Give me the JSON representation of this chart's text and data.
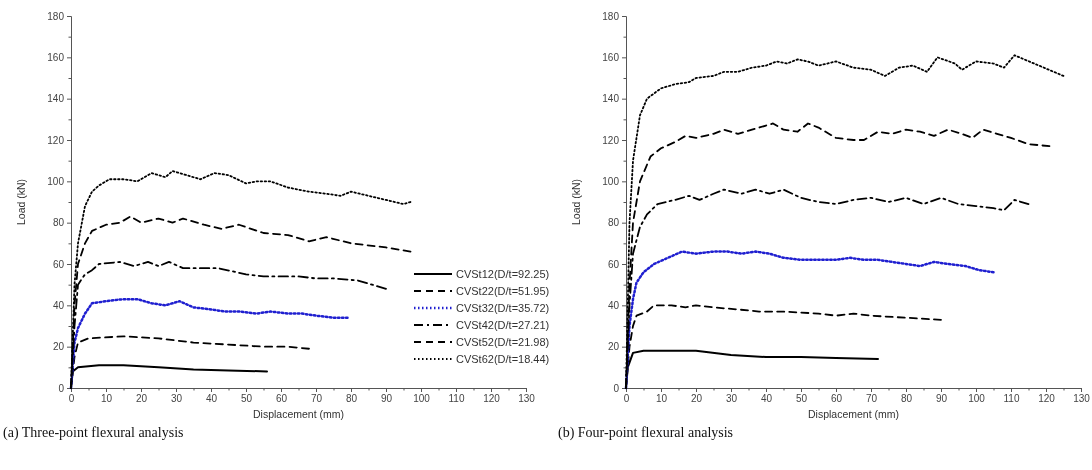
{
  "chart_data": [
    {
      "type": "line",
      "title": "(a) Three-point flexural analysis",
      "xlabel": "Displacement (mm)",
      "ylabel": "Load (kN)",
      "xlim": [
        0,
        130
      ],
      "ylim": [
        0,
        180
      ],
      "xticks": [
        0,
        {
          "value": 5,
          "label": null
        },
        10,
        {
          "value": 15,
          "label": null
        },
        20,
        {
          "value": 25,
          "label": null
        },
        30,
        {
          "value": 35,
          "label": null
        },
        40,
        {
          "value": 45,
          "label": null
        },
        50,
        {
          "value": 55,
          "label": null
        },
        60,
        {
          "value": 65,
          "label": null
        },
        70,
        {
          "value": 75,
          "label": null
        },
        80,
        {
          "value": 85,
          "label": null
        },
        90,
        {
          "value": 95,
          "label": null
        },
        100,
        {
          "value": 105,
          "label": null
        },
        110,
        {
          "value": 115,
          "label": null
        },
        120,
        {
          "value": 125,
          "label": null
        },
        130
      ],
      "yticks": [
        0,
        {
          "value": 10,
          "label": null
        },
        20,
        {
          "value": 30,
          "label": null
        },
        40,
        {
          "value": 50,
          "label": null
        },
        60,
        {
          "value": 70,
          "label": null
        },
        80,
        {
          "value": 90,
          "label": null
        },
        100,
        {
          "value": 110,
          "label": null
        },
        120,
        {
          "value": 130,
          "label": null
        },
        140,
        {
          "value": 150,
          "label": null
        },
        160,
        {
          "value": 170,
          "label": null
        },
        180
      ],
      "grid": false,
      "legend": "bottom right",
      "marker": "none",
      "series": [
        {
          "name": "CVSt12(D/t=92.25)",
          "color": "#000000",
          "line_style": "solid",
          "x": [
            0,
            0.5,
            2,
            8,
            15,
            25,
            35,
            45,
            56
          ],
          "values": [
            0,
            8,
            10,
            11,
            11,
            10,
            9,
            8.5,
            8
          ]
        },
        {
          "name": "CVSt22(D/t=51.95)",
          "color": "#000000",
          "line_style": "dashed",
          "x": [
            0,
            1,
            2,
            5,
            15,
            25,
            35,
            45,
            55,
            62,
            68
          ],
          "values": [
            0,
            15,
            22,
            24,
            25,
            24,
            22,
            21,
            20,
            20,
            19
          ]
        },
        {
          "name": "CVSt32(D/t=35.72)",
          "color": "#1f1fd0",
          "line_style": "dotted",
          "x": [
            0,
            1,
            2,
            4,
            6,
            10,
            15,
            19,
            23,
            27,
            31,
            35,
            40,
            44,
            48,
            53,
            57,
            62,
            66,
            70,
            75,
            79
          ],
          "values": [
            0,
            22,
            29,
            36,
            41,
            42,
            43,
            43,
            41,
            40,
            42,
            39,
            38,
            37,
            37,
            36,
            37,
            36,
            36,
            35,
            34,
            34
          ]
        },
        {
          "name": "CVSt42(D/t=27.21)",
          "color": "#000000",
          "line_style": "dashdot",
          "x": [
            0,
            1,
            2,
            4,
            6,
            8,
            14,
            18,
            22,
            25,
            28,
            32,
            38,
            42,
            50,
            55,
            60,
            65,
            70,
            75,
            82,
            86,
            90
          ],
          "values": [
            0,
            30,
            50,
            55,
            57,
            60,
            61,
            59,
            61,
            59,
            61,
            58,
            58,
            58,
            55,
            54,
            54,
            54,
            53,
            53,
            52,
            50,
            48
          ]
        },
        {
          "name": "CVSt52(D/t=21.98)",
          "color": "#000000",
          "line_style": "dashed",
          "x": [
            0,
            1,
            2,
            4,
            6,
            10,
            14,
            17,
            20,
            25,
            29,
            32,
            38,
            43,
            48,
            55,
            62,
            68,
            73,
            80,
            90,
            97
          ],
          "values": [
            0,
            40,
            60,
            70,
            76,
            79,
            80,
            83,
            80,
            82,
            80,
            82,
            79,
            77,
            79,
            75,
            74,
            71,
            73,
            70,
            68,
            66
          ]
        },
        {
          "name": "CVSt62(D/t=18.44)",
          "color": "#000000",
          "line_style": "dotted",
          "x": [
            0,
            1,
            2,
            4,
            6,
            8,
            11,
            15,
            19,
            23,
            27,
            29,
            33,
            37,
            41,
            45,
            50,
            53,
            57,
            62,
            68,
            73,
            77,
            80,
            85,
            90,
            95,
            97
          ],
          "values": [
            0,
            50,
            70,
            88,
            95,
            98,
            101,
            101,
            100,
            104,
            102,
            105,
            103,
            101,
            104,
            103,
            99,
            100,
            100,
            97,
            95,
            94,
            93,
            95,
            93,
            91,
            89,
            90
          ]
        }
      ]
    },
    {
      "type": "line",
      "title": "(b) Four-point flexural analysis",
      "xlabel": "Displacement (mm)",
      "ylabel": "Load (kN)",
      "xlim": [
        0,
        130
      ],
      "ylim": [
        0,
        180
      ],
      "xticks": [
        0,
        {
          "value": 5,
          "label": null
        },
        10,
        {
          "value": 15,
          "label": null
        },
        20,
        {
          "value": 25,
          "label": null
        },
        30,
        {
          "value": 35,
          "label": null
        },
        40,
        {
          "value": 45,
          "label": null
        },
        50,
        {
          "value": 55,
          "label": null
        },
        60,
        {
          "value": 65,
          "label": null
        },
        70,
        {
          "value": 75,
          "label": null
        },
        80,
        {
          "value": 85,
          "label": null
        },
        90,
        {
          "value": 95,
          "label": null
        },
        100,
        {
          "value": 105,
          "label": null
        },
        110,
        {
          "value": 115,
          "label": null
        },
        120,
        {
          "value": 125,
          "label": null
        },
        130
      ],
      "yticks": [
        0,
        {
          "value": 10,
          "label": null
        },
        20,
        {
          "value": 30,
          "label": null
        },
        40,
        {
          "value": 50,
          "label": null
        },
        60,
        {
          "value": 70,
          "label": null
        },
        80,
        {
          "value": 90,
          "label": null
        },
        100,
        {
          "value": 110,
          "label": null
        },
        120,
        {
          "value": 130,
          "label": null
        },
        140,
        {
          "value": 150,
          "label": null
        },
        160,
        {
          "value": 170,
          "label": null
        },
        180
      ],
      "grid": false,
      "marker": "none",
      "series": [
        {
          "color": "#000000",
          "line_style": "solid",
          "x": [
            0,
            0.5,
            2,
            5,
            20,
            30,
            40,
            50,
            60,
            72
          ],
          "values": [
            0,
            10,
            17,
            18,
            18,
            16,
            15,
            15,
            14.5,
            14
          ]
        },
        {
          "color": "#000000",
          "line_style": "dashed",
          "x": [
            0,
            1,
            2,
            3,
            6,
            8,
            13,
            17,
            20,
            25,
            32,
            38,
            45,
            55,
            60,
            65,
            70,
            80,
            90
          ],
          "values": [
            0,
            20,
            30,
            35,
            37,
            40,
            40,
            39,
            40,
            39,
            38,
            37,
            37,
            36,
            35,
            36,
            35,
            34,
            33
          ]
        },
        {
          "color": "#1f1fd0",
          "line_style": "dotted",
          "x": [
            0,
            1,
            2,
            3,
            5,
            8,
            12,
            16,
            20,
            25,
            29,
            33,
            37,
            41,
            45,
            50,
            55,
            60,
            64,
            68,
            72,
            76,
            80,
            84,
            88,
            92,
            97,
            101,
            105
          ],
          "values": [
            0,
            30,
            43,
            51,
            56,
            60,
            63,
            66,
            65,
            66,
            66,
            65,
            66,
            65,
            63,
            62,
            62,
            62,
            63,
            62,
            62,
            61,
            60,
            59,
            61,
            60,
            59,
            57,
            56
          ]
        },
        {
          "color": "#000000",
          "line_style": "dashdot",
          "x": [
            0,
            1,
            2,
            4,
            6,
            9,
            14,
            18,
            21,
            25,
            28,
            33,
            37,
            41,
            45,
            50,
            55,
            60,
            65,
            70,
            75,
            80,
            85,
            90,
            95,
            100,
            105,
            108,
            111,
            115
          ],
          "values": [
            0,
            40,
            65,
            78,
            84,
            89,
            91,
            93,
            91,
            94,
            96,
            94,
            96,
            94,
            96,
            92,
            90,
            89,
            91,
            92,
            90,
            92,
            89,
            92,
            89,
            88,
            87,
            86,
            91,
            89
          ]
        },
        {
          "color": "#000000",
          "line_style": "dashed",
          "x": [
            0,
            1,
            2,
            4,
            7,
            10,
            14,
            17,
            20,
            25,
            28,
            32,
            36,
            40,
            42,
            45,
            49,
            52,
            55,
            60,
            65,
            68,
            72,
            76,
            80,
            84,
            88,
            92,
            96,
            99,
            102,
            106,
            110,
            115,
            121
          ],
          "values": [
            0,
            50,
            80,
            100,
            112,
            116,
            119,
            122,
            121,
            123,
            125,
            123,
            125,
            127,
            128,
            125,
            124,
            128,
            126,
            121,
            120,
            120,
            124,
            123,
            125,
            124,
            122,
            125,
            123,
            121,
            125,
            123,
            121,
            118,
            117
          ]
        },
        {
          "color": "#000000",
          "line_style": "dotted",
          "x": [
            0,
            0.5,
            1,
            2,
            4,
            6,
            10,
            14,
            18,
            20,
            25,
            28,
            32,
            36,
            40,
            43,
            46,
            49,
            52,
            55,
            60,
            65,
            70,
            74,
            78,
            82,
            86,
            89,
            94,
            96,
            100,
            105,
            108,
            111,
            118,
            125
          ],
          "values": [
            0,
            40,
            80,
            110,
            132,
            140,
            145,
            147,
            148,
            150,
            151,
            153,
            153,
            155,
            156,
            158,
            157,
            159,
            158,
            156,
            158,
            155,
            154,
            151,
            155,
            156,
            153,
            160,
            157,
            154,
            158,
            157,
            155,
            161,
            156,
            151
          ]
        }
      ]
    }
  ]
}
